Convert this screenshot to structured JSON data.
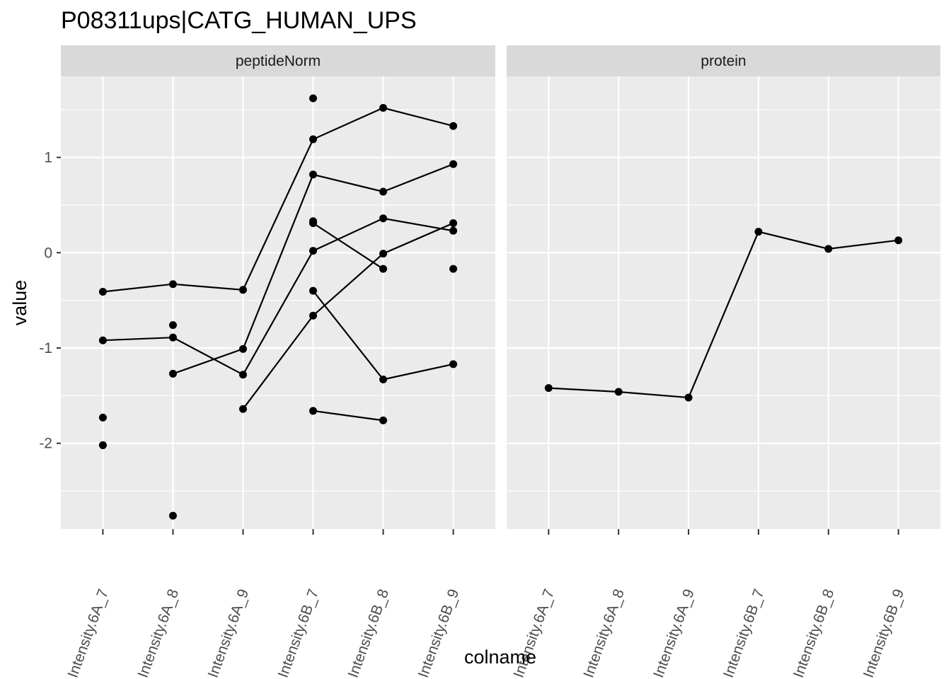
{
  "chart_data": {
    "type": "line",
    "title": "P08311ups|CATG_HUMAN_UPS",
    "xlabel": "colname",
    "ylabel": "value",
    "categories": [
      "Intensity.6A_7",
      "Intensity.6A_8",
      "Intensity.6A_9",
      "Intensity.6B_7",
      "Intensity.6B_8",
      "Intensity.6B_9"
    ],
    "ylim": [
      -2.9,
      1.85
    ],
    "yticks": [
      -2,
      -1,
      0,
      1
    ],
    "ytick_labels": [
      "-2",
      "-1",
      "0",
      "1"
    ],
    "grid": true,
    "colors": {
      "panel_bg": "#ebebeb",
      "strip_bg": "#d9d9d9",
      "grid": "#ffffff",
      "mark": "#000000"
    },
    "facets": [
      {
        "label": "peptideNorm",
        "series": [
          {
            "values": [
              -0.41,
              -0.33,
              -0.39,
              1.19,
              1.52,
              1.33
            ]
          },
          {
            "values": [
              -0.92,
              -0.89,
              -1.28,
              0.02,
              0.36,
              0.23
            ]
          },
          {
            "values": [
              null,
              -1.27,
              -1.01,
              0.82,
              0.64,
              0.93
            ]
          },
          {
            "values": [
              null,
              null,
              -1.64,
              -0.66,
              -0.01,
              0.31
            ]
          },
          {
            "values": [
              null,
              null,
              null,
              0.31,
              -0.17,
              null
            ]
          },
          {
            "values": [
              null,
              null,
              null,
              -0.4,
              -1.33,
              -1.17
            ]
          },
          {
            "values": [
              null,
              null,
              null,
              -1.66,
              -1.76,
              null
            ]
          }
        ],
        "points": [
          {
            "x": "Intensity.6A_7",
            "y": -1.73
          },
          {
            "x": "Intensity.6A_7",
            "y": -2.02
          },
          {
            "x": "Intensity.6A_8",
            "y": -0.76
          },
          {
            "x": "Intensity.6A_8",
            "y": -2.76
          },
          {
            "x": "Intensity.6B_7",
            "y": 1.62
          },
          {
            "x": "Intensity.6B_7",
            "y": 0.33
          },
          {
            "x": "Intensity.6B_9",
            "y": -0.17
          }
        ]
      },
      {
        "label": "protein",
        "series": [
          {
            "values": [
              -1.42,
              -1.46,
              -1.52,
              0.22,
              0.04,
              0.13
            ]
          }
        ],
        "points": []
      }
    ]
  }
}
